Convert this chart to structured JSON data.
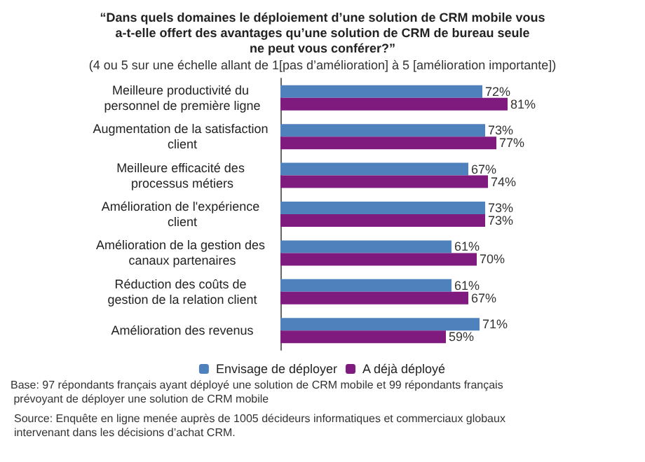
{
  "chart_data": {
    "type": "bar",
    "orientation": "horizontal",
    "title": "“Dans quels domaines le déploiement d’une solution de CRM mobile vous a-t-elle offert des avantages qu’une solution de CRM de bureau seule ne peut vous conférer?”",
    "subtitle": "(4 ou 5 sur une échelle allant de 1[pas d’amélioration] à 5 [amélioration importante])",
    "categories": [
      "Meilleure productivité du personnel de première ligne",
      "Augmentation de la satisfaction client",
      "Meilleure efficacité des processus métiers",
      "Amélioration de l'expérience client",
      "Amélioration de la gestion des canaux partenaires",
      "Réduction des coûts de gestion de la relation client",
      "Amélioration des revenus"
    ],
    "series": [
      {
        "name": "Envisage de déployer",
        "color": "#4f81bd",
        "values": [
          72,
          73,
          67,
          73,
          61,
          61,
          71
        ],
        "value_labels": [
          "72%",
          "73%",
          "67%",
          "73%",
          "61%",
          "61%",
          "71%"
        ]
      },
      {
        "name": "A déjà déployé",
        "color": "#7f1a7f",
        "values": [
          81,
          77,
          74,
          73,
          70,
          67,
          59
        ],
        "value_labels": [
          "81%",
          "77%",
          "74%",
          "73%",
          "70%",
          "67%",
          "59%"
        ]
      }
    ],
    "legend": "bottom",
    "annotations": [
      "Base: 97 répondants français ayant déployé une solution de CRM mobile et 99 répondants français prévoyant de déployer une solution de CRM mobile",
      "Source: Enquête en ligne menée auprès de 1005 décideurs informatiques et commerciaux globaux intervenant dans les décisions d’achat CRM."
    ]
  }
}
